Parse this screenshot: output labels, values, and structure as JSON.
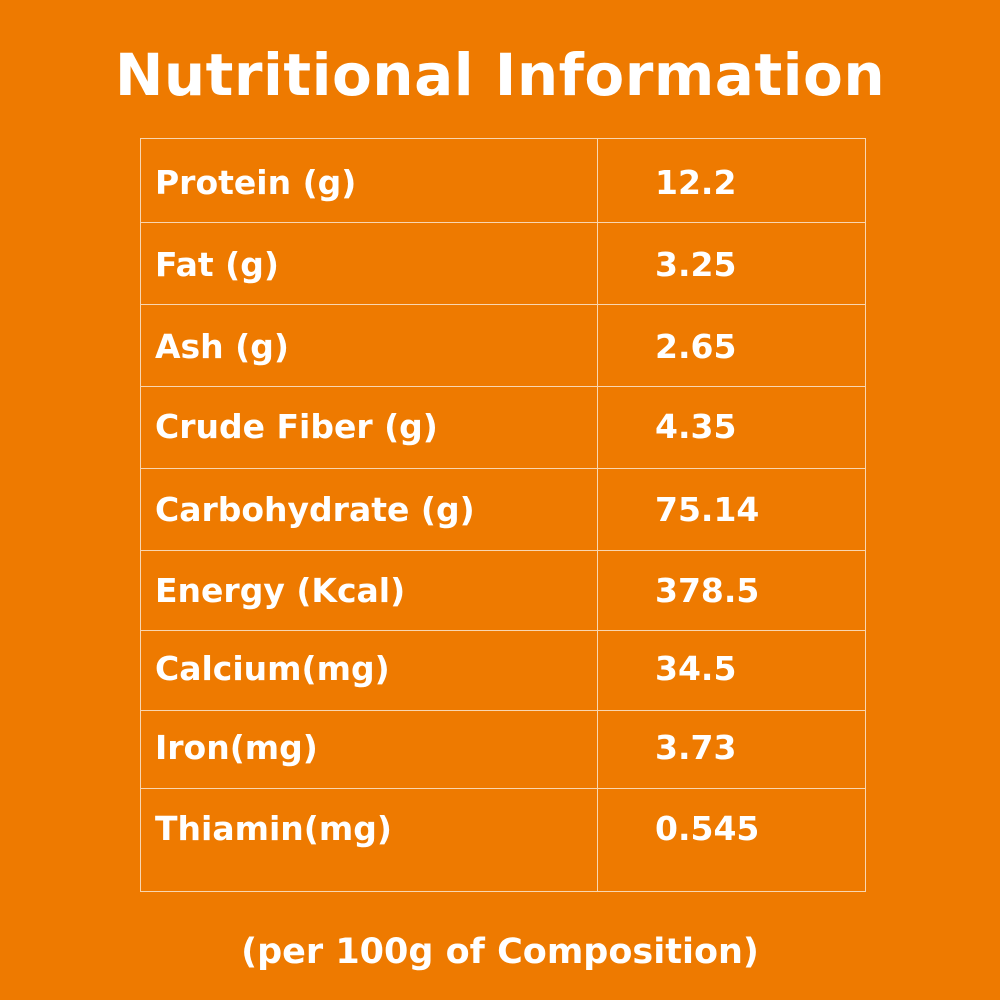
{
  "title": "Nutritional Information",
  "footer": "(per 100g of Composition)",
  "rows": [
    {
      "name": "Protein (g)",
      "value": "12.2"
    },
    {
      "name": "Fat (g)",
      "value": "3.25"
    },
    {
      "name": "Ash (g)",
      "value": "2.65"
    },
    {
      "name": "Crude Fiber (g)",
      "value": "4.35"
    },
    {
      "name": "Carbohydrate (g)",
      "value": "75.14"
    },
    {
      "name": "Energy (Kcal)",
      "value": "378.5"
    },
    {
      "name": "Calcium(mg)",
      "value": "34.5"
    },
    {
      "name": "Iron(mg)",
      "value": "3.73"
    },
    {
      "name": "Thiamin(mg)",
      "value": "0.545"
    }
  ],
  "colors": {
    "background": "#EE7A00",
    "text": "#FFFFFF",
    "grid": "#F9D6B0"
  }
}
